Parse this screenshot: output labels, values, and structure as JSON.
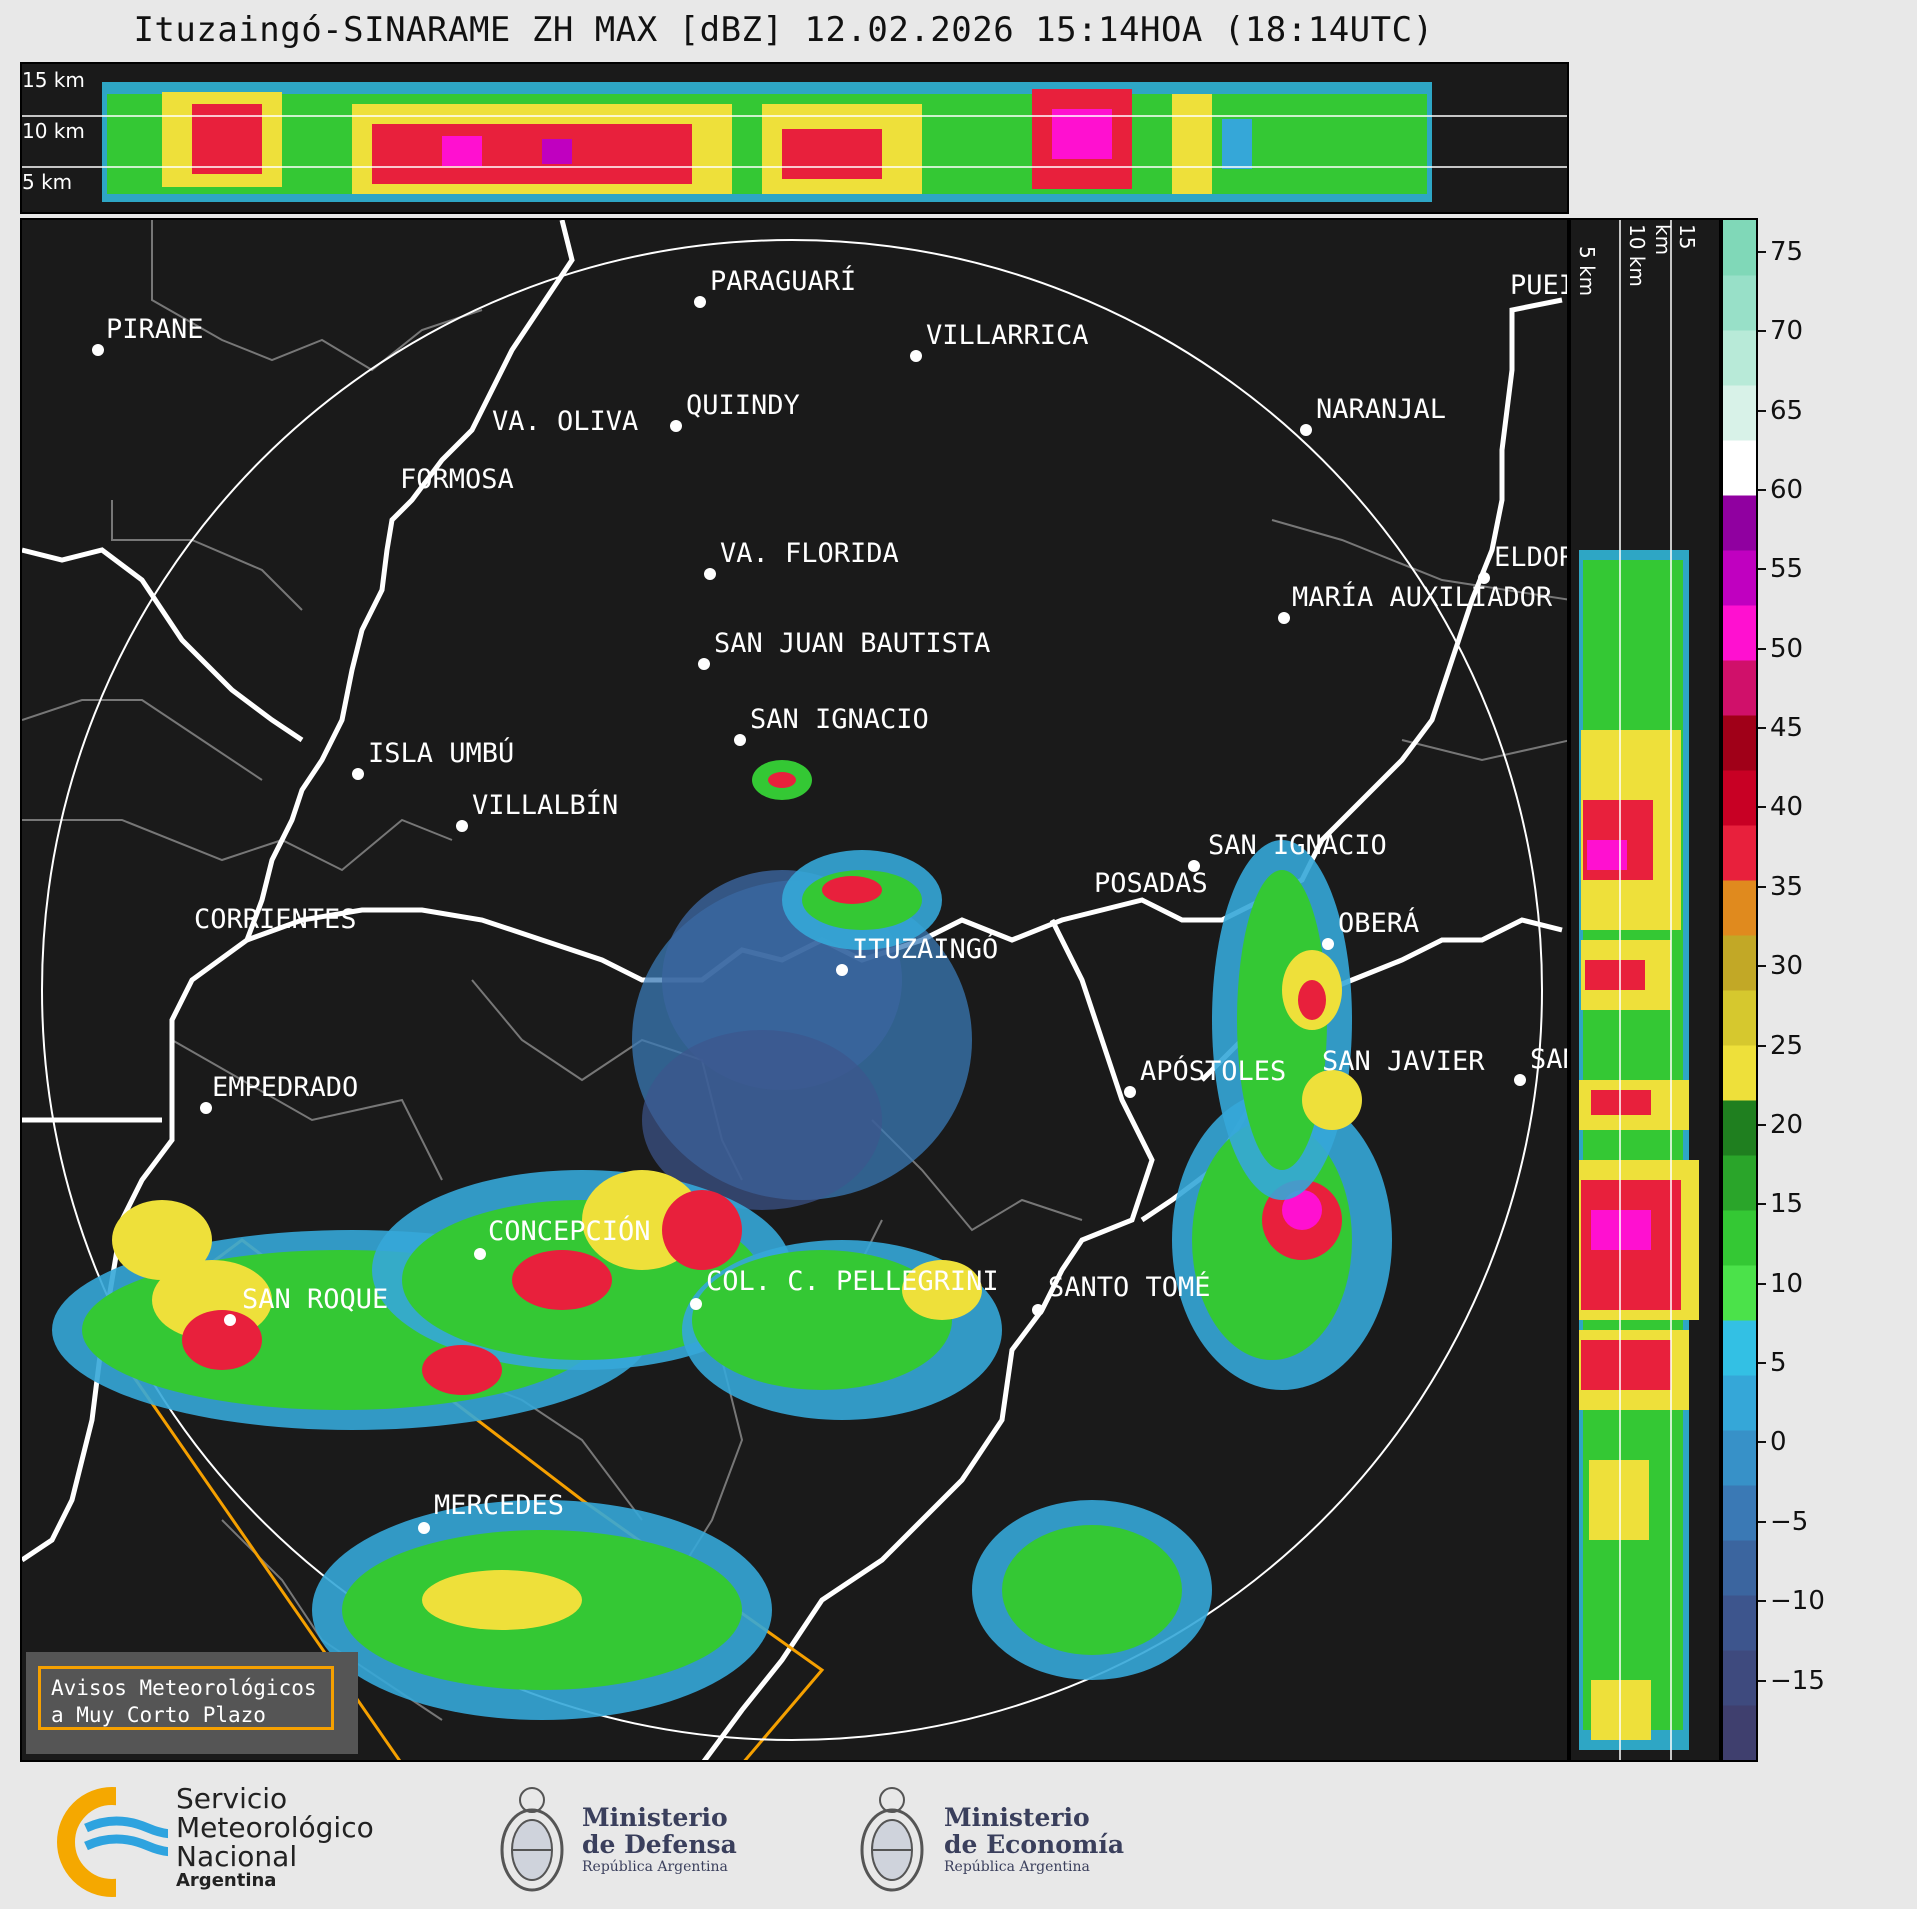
{
  "title": "Ituzaingó-SINARAME ZH MAX [dBZ] 12.02.2026 15:14HOA (18:14UTC)",
  "top_panel": {
    "height_labels": [
      "15 km",
      "10 km",
      "5 km"
    ]
  },
  "side_panel": {
    "height_labels": [
      "5 km",
      "10 km",
      "15 km"
    ]
  },
  "colorbar": {
    "unit": "dBZ",
    "ticks": [
      "75",
      "70",
      "65",
      "60",
      "55",
      "50",
      "45",
      "40",
      "35",
      "30",
      "25",
      "20",
      "15",
      "10",
      "5",
      "0",
      "−5",
      "−10",
      "−15"
    ],
    "range": [
      -20,
      77
    ],
    "colors": [
      "#3f3f6e",
      "#3e4a7e",
      "#3d558d",
      "#3b659f",
      "#3a79b5",
      "#3791c8",
      "#35a7d8",
      "#33c0e4",
      "#4be24a",
      "#34c834",
      "#2aa52a",
      "#1f7f1f",
      "#eee03a",
      "#d6c82e",
      "#c2a826",
      "#e08a1e",
      "#e8203c",
      "#c80024",
      "#a00018",
      "#d0106a",
      "#ff10d0",
      "#c000c0",
      "#9000a0",
      "#ffffff",
      "#d8f2e8",
      "#b8ead8",
      "#98e0c8",
      "#80d8b8"
    ]
  },
  "cities": [
    {
      "name": "PIRANE"
    },
    {
      "name": "PARAGUARÍ"
    },
    {
      "name": "VILLARRICA"
    },
    {
      "name": "VA. OLIVA"
    },
    {
      "name": "QUIINDY"
    },
    {
      "name": "NARANJAL"
    },
    {
      "name": "FORMOSA"
    },
    {
      "name": "VA. FLORIDA"
    },
    {
      "name": "ELDOR"
    },
    {
      "name": "MARÍA AUXILIADOR"
    },
    {
      "name": "SAN JUAN BAUTISTA"
    },
    {
      "name": "SAN IGNACIO"
    },
    {
      "name": "ISLA UMBÚ"
    },
    {
      "name": "VILLALBÍN"
    },
    {
      "name": "SAN IGNACIO"
    },
    {
      "name": "POSADAS"
    },
    {
      "name": "CORRIENTES"
    },
    {
      "name": "ITUZAINGÓ"
    },
    {
      "name": "OBERÁ"
    },
    {
      "name": "APÓSTOLES"
    },
    {
      "name": "SAN JAVIER"
    },
    {
      "name": "SAN"
    },
    {
      "name": "EMPEDRADO"
    },
    {
      "name": "CONCEPCIÓN"
    },
    {
      "name": "COL. C. PELLEGRINI"
    },
    {
      "name": "SAN ROQUE"
    },
    {
      "name": "SANTO TOMÉ"
    },
    {
      "name": "MERCEDES"
    },
    {
      "name": "PUEI"
    }
  ],
  "legend": {
    "line1": "Avisos Meteorológicos",
    "line2": "a Muy Corto Plazo",
    "outline_color": "#f5a000"
  },
  "footer": {
    "smn": {
      "line1": "Servicio",
      "line2": "Meteorológico",
      "line3": "Nacional",
      "line4": "Argentina"
    },
    "defensa": {
      "line1": "Ministerio",
      "line2": "de Defensa",
      "line3": "República Argentina"
    },
    "economia": {
      "line1": "Ministerio",
      "line2": "de Economía",
      "line3": "República Argentina"
    }
  }
}
